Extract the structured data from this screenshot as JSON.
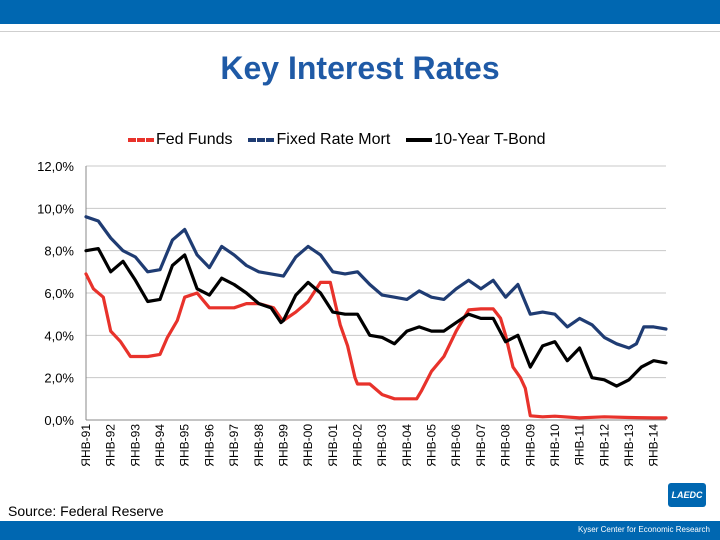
{
  "header": {
    "title": "Key Interest Rates"
  },
  "source": "Source: Federal Reserve",
  "footer": {
    "org": "Kyser Center for Economic Research",
    "logo_text": "LAEDC"
  },
  "colors": {
    "brand": "#0067b1",
    "title": "#1f5aa6",
    "fed": "#e8322b",
    "mort": "#1f3c73",
    "tbond": "#000000"
  },
  "chart_data": {
    "type": "line",
    "title": "Key Interest Rates",
    "categories": [
      "ЯНВ-91",
      "ЯНВ-92",
      "ЯНВ-93",
      "ЯНВ-94",
      "ЯНВ-95",
      "ЯНВ-96",
      "ЯНВ-97",
      "ЯНВ-98",
      "ЯНВ-99",
      "ЯНВ-00",
      "ЯНВ-01",
      "ЯНВ-02",
      "ЯНВ-03",
      "ЯНВ-04",
      "ЯНВ-05",
      "ЯНВ-06",
      "ЯНВ-07",
      "ЯНВ-08",
      "ЯНВ-09",
      "ЯНВ-10",
      "ЯНВ-11",
      "ЯНВ-12",
      "ЯНВ-13",
      "ЯНВ-14"
    ],
    "x_start": 1991,
    "x_end": 2014.5,
    "ylim": [
      0,
      12
    ],
    "yticks": [
      "0,0%",
      "2,0%",
      "4,0%",
      "6,0%",
      "8,0%",
      "10,0%",
      "12,0%"
    ],
    "grid": true,
    "legend": "top",
    "series": [
      {
        "name": "Fed Funds",
        "color": "#e8322b",
        "x": [
          1991,
          1991.3,
          1991.7,
          1992,
          1992.4,
          1992.8,
          1993,
          1993.5,
          1994,
          1994.3,
          1994.7,
          1995,
          1995.5,
          1996,
          1996.5,
          1997,
          1997.5,
          1998,
          1998.6,
          1998.9,
          1999,
          1999.5,
          2000,
          2000.5,
          2000.9,
          2001,
          2001.3,
          2001.6,
          2001.9,
          2002,
          2002.5,
          2002.9,
          2003,
          2003.5,
          2004,
          2004.4,
          2004.6,
          2005,
          2005.5,
          2006,
          2006.5,
          2007,
          2007.5,
          2007.8,
          2008,
          2008.3,
          2008.6,
          2008.8,
          2009,
          2009.5,
          2010,
          2011,
          2012,
          2013,
          2014,
          2014.5
        ],
        "values": [
          6.9,
          6.2,
          5.8,
          4.2,
          3.7,
          3.0,
          3.0,
          3.0,
          3.1,
          3.9,
          4.7,
          5.8,
          6.0,
          5.3,
          5.3,
          5.3,
          5.5,
          5.5,
          5.3,
          4.8,
          4.7,
          5.1,
          5.6,
          6.5,
          6.5,
          6.0,
          4.5,
          3.5,
          2.0,
          1.7,
          1.7,
          1.3,
          1.2,
          1.0,
          1.0,
          1.0,
          1.4,
          2.3,
          3.0,
          4.2,
          5.2,
          5.25,
          5.25,
          4.8,
          4.0,
          2.5,
          2.0,
          1.5,
          0.2,
          0.15,
          0.18,
          0.1,
          0.15,
          0.12,
          0.1,
          0.1
        ]
      },
      {
        "name": "Fixed Rate Mort",
        "color": "#1f3c73",
        "x": [
          1991,
          1991.5,
          1992,
          1992.5,
          1993,
          1993.5,
          1994,
          1994.5,
          1995,
          1995.5,
          1996,
          1996.5,
          1997,
          1997.5,
          1998,
          1998.5,
          1999,
          1999.5,
          2000,
          2000.5,
          2001,
          2001.5,
          2002,
          2002.5,
          2003,
          2003.5,
          2004,
          2004.5,
          2005,
          2005.5,
          2006,
          2006.5,
          2007,
          2007.5,
          2008,
          2008.5,
          2009,
          2009.5,
          2010,
          2010.5,
          2011,
          2011.5,
          2012,
          2012.5,
          2013,
          2013.3,
          2013.6,
          2014,
          2014.5
        ],
        "values": [
          9.6,
          9.4,
          8.6,
          8.0,
          7.7,
          7.0,
          7.1,
          8.5,
          9.0,
          7.8,
          7.2,
          8.2,
          7.8,
          7.3,
          7.0,
          6.9,
          6.8,
          7.7,
          8.2,
          7.8,
          7.0,
          6.9,
          7.0,
          6.4,
          5.9,
          5.8,
          5.7,
          6.1,
          5.8,
          5.7,
          6.2,
          6.6,
          6.2,
          6.6,
          5.8,
          6.4,
          5.0,
          5.1,
          5.0,
          4.4,
          4.8,
          4.5,
          3.9,
          3.6,
          3.4,
          3.6,
          4.4,
          4.4,
          4.3
        ]
      },
      {
        "name": "10-Year T-Bond",
        "color": "#000000",
        "x": [
          1991,
          1991.5,
          1992,
          1992.5,
          1993,
          1993.5,
          1994,
          1994.5,
          1995,
          1995.5,
          1996,
          1996.5,
          1997,
          1997.5,
          1998,
          1998.5,
          1998.9,
          1999,
          1999.5,
          2000,
          2000.5,
          2001,
          2001.5,
          2002,
          2002.5,
          2003,
          2003.5,
          2004,
          2004.5,
          2005,
          2005.5,
          2006,
          2006.5,
          2007,
          2007.5,
          2008,
          2008.5,
          2009,
          2009.5,
          2010,
          2010.5,
          2011,
          2011.5,
          2012,
          2012.5,
          2013,
          2013.5,
          2014,
          2014.5
        ],
        "values": [
          8.0,
          8.1,
          7.0,
          7.5,
          6.6,
          5.6,
          5.7,
          7.3,
          7.8,
          6.2,
          5.9,
          6.7,
          6.4,
          6.0,
          5.5,
          5.3,
          4.6,
          4.7,
          5.9,
          6.5,
          6.0,
          5.1,
          5.0,
          5.0,
          4.0,
          3.9,
          3.6,
          4.2,
          4.4,
          4.2,
          4.2,
          4.6,
          5.0,
          4.8,
          4.8,
          3.7,
          4.0,
          2.5,
          3.5,
          3.7,
          2.8,
          3.4,
          2.0,
          1.9,
          1.6,
          1.9,
          2.5,
          2.8,
          2.7
        ]
      }
    ]
  }
}
